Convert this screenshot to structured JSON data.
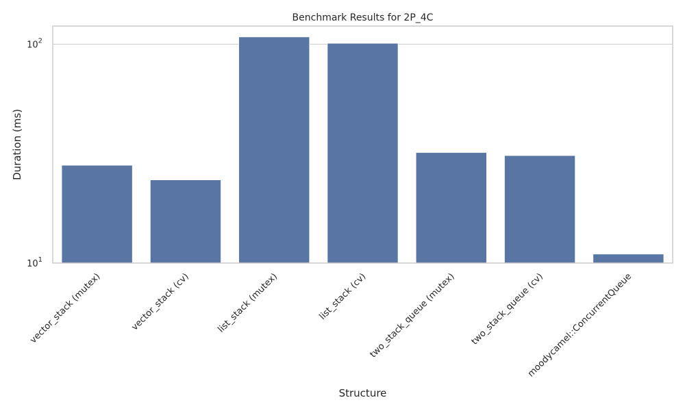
{
  "chart_data": {
    "type": "bar",
    "title": "Benchmark Results for 2P_4C",
    "xlabel": "Structure",
    "ylabel": "Duration (ms)",
    "yscale": "log",
    "ylim": [
      10,
      121
    ],
    "y_ticks": [
      {
        "value": 10,
        "base": "10",
        "exp": "1"
      },
      {
        "value": 100,
        "base": "10",
        "exp": "2"
      }
    ],
    "grid": "horizontal",
    "bar_color": "#5875a4",
    "categories": [
      "vector_stack (mutex)",
      "vector_stack (cv)",
      "list_stack (mutex)",
      "list_stack (cv)",
      "two_stack_queue (mutex)",
      "two_stack_queue (cv)",
      "moodycamel::ConcurrentQueue"
    ],
    "values": [
      28,
      24,
      108,
      101,
      32,
      31,
      11
    ]
  }
}
